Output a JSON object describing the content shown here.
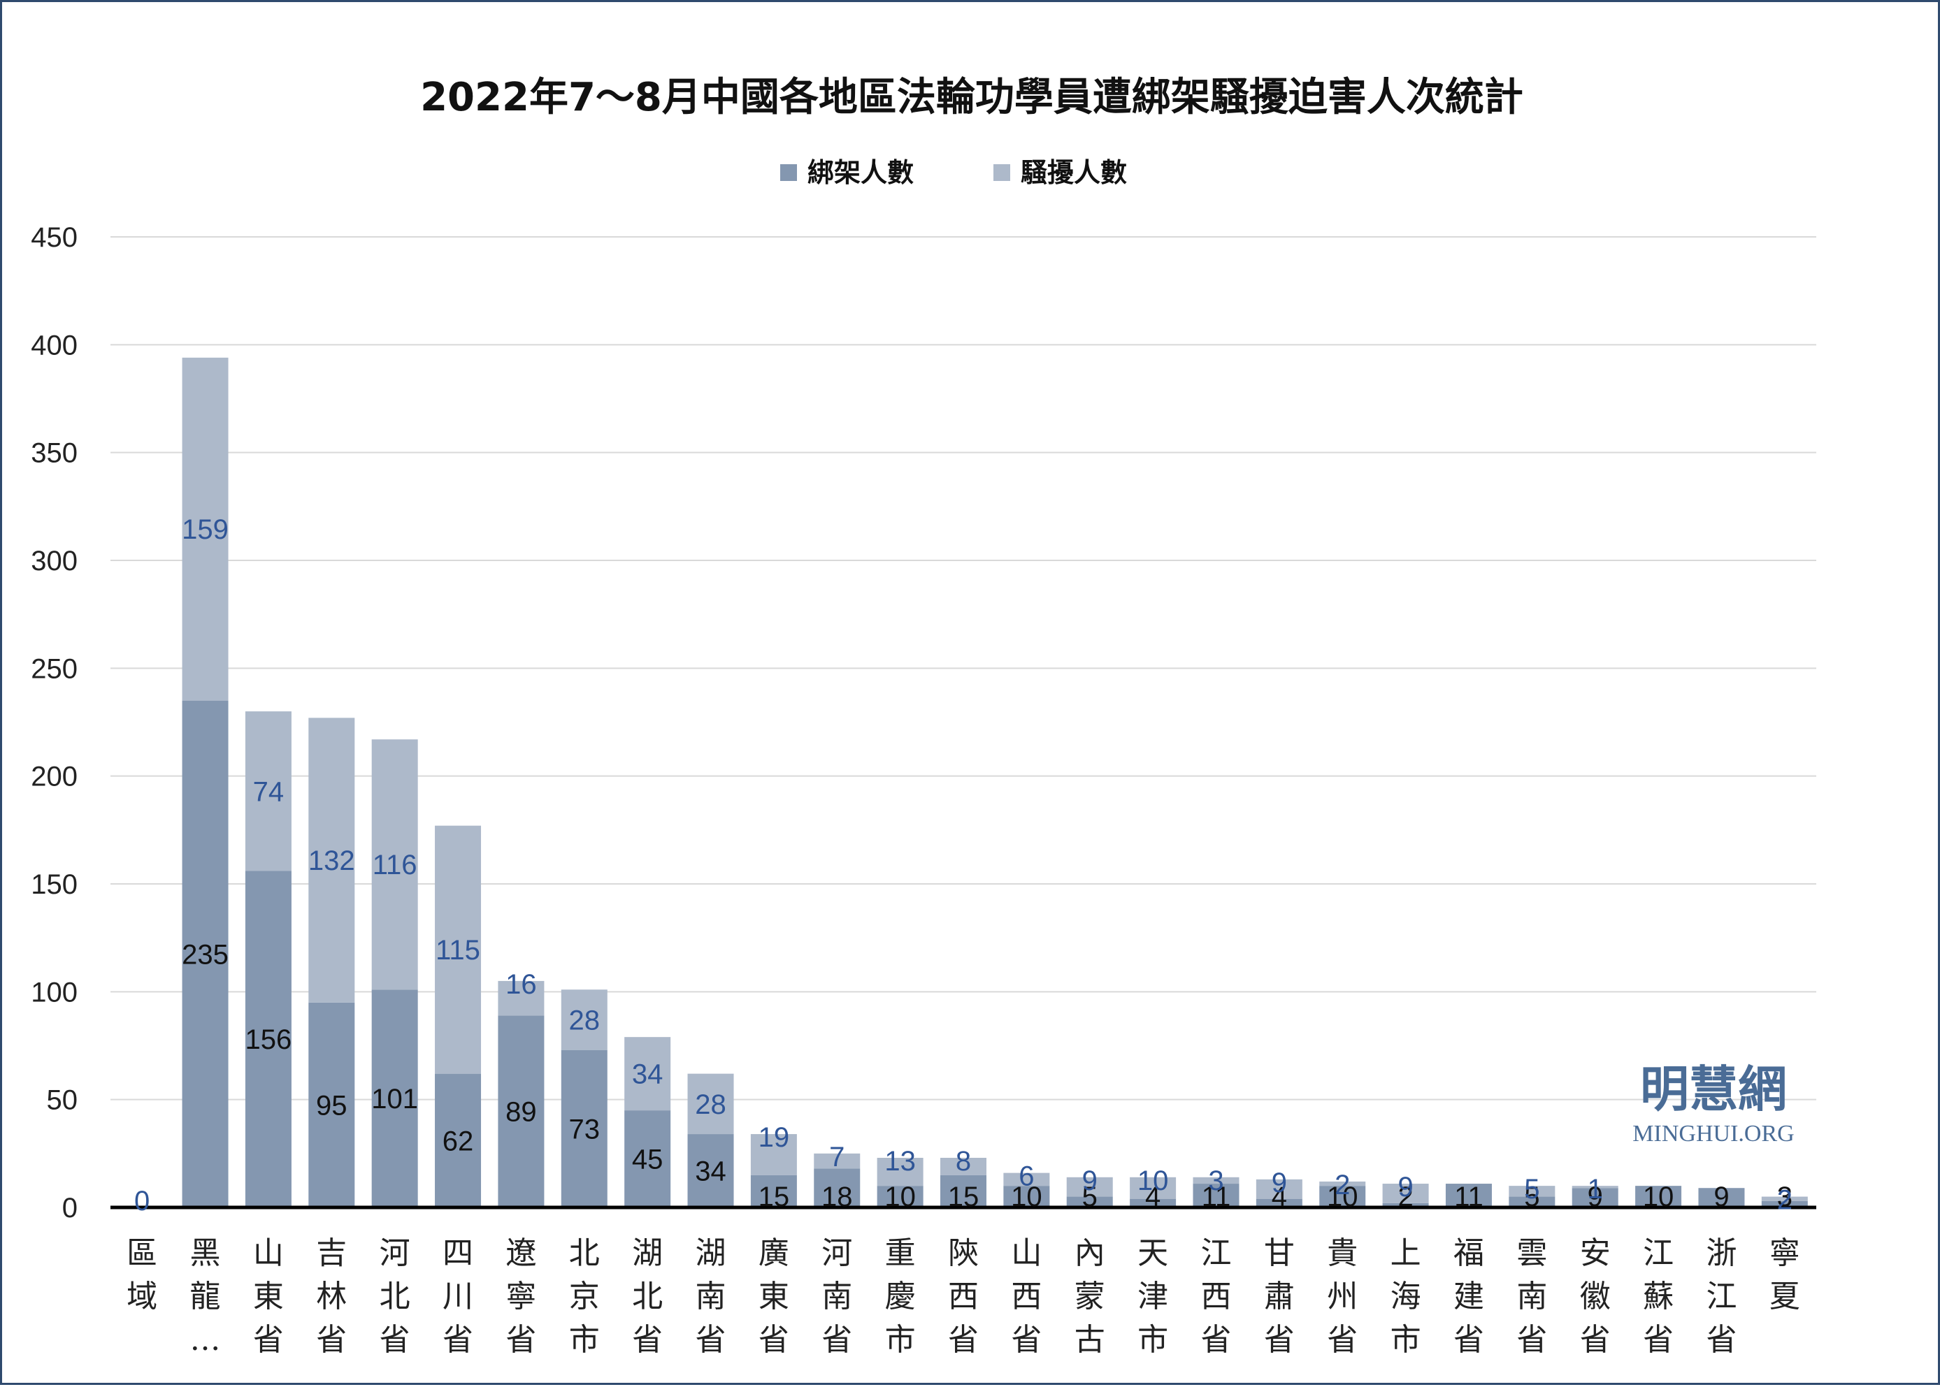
{
  "title": "2022年7～8月中國各地區法輪功學員遭綁架騷擾迫害人次統計",
  "watermark": {
    "chinese": "明慧網",
    "english": "MINGHUI.ORG"
  },
  "colors": {
    "kidnap": "#8497b0",
    "harass": "#adb9ca",
    "label_top": "#2f5597",
    "label_bottom": "#111111",
    "grid": "#d9d9d9",
    "axis": "#000000"
  },
  "chart_data": {
    "type": "bar",
    "stacked": true,
    "categories": [
      "區域",
      "黑龍…",
      "山東省",
      "吉林省",
      "河北省",
      "四川省",
      "遼寧省",
      "北京市",
      "湖北省",
      "湖南省",
      "廣東省",
      "河南省",
      "重慶市",
      "陝西省",
      "山西省",
      "內蒙古",
      "天津市",
      "江西省",
      "甘肅省",
      "貴州省",
      "上海市",
      "福建省",
      "雲南省",
      "安徽省",
      "江蘇省",
      "浙江省",
      "寧夏"
    ],
    "series": [
      {
        "name": "綁架人數",
        "values": [
          null,
          235,
          156,
          95,
          101,
          62,
          89,
          73,
          45,
          34,
          15,
          18,
          10,
          15,
          10,
          5,
          4,
          11,
          4,
          10,
          2,
          11,
          5,
          9,
          10,
          9,
          3
        ]
      },
      {
        "name": "騷擾人數",
        "values": [
          0,
          159,
          74,
          132,
          116,
          115,
          16,
          28,
          34,
          28,
          19,
          7,
          13,
          8,
          6,
          9,
          10,
          3,
          9,
          2,
          9,
          null,
          5,
          1,
          null,
          null,
          2
        ]
      }
    ],
    "ylim": [
      0,
      450
    ],
    "yticks": [
      0,
      50,
      100,
      150,
      200,
      250,
      300,
      350,
      400,
      450
    ],
    "grid": true,
    "legend_position": "top-center",
    "xlabel": "",
    "ylabel": ""
  }
}
